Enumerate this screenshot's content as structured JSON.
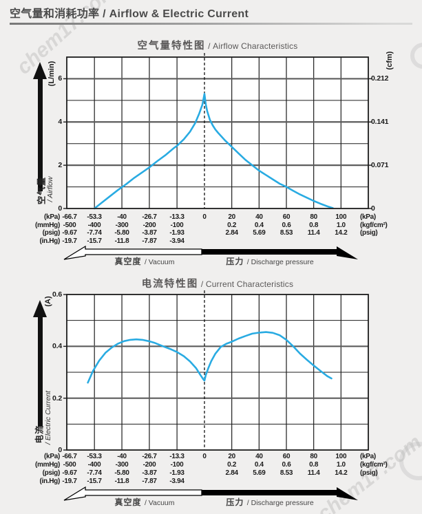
{
  "page": {
    "title": "空气量和消耗功率 / Airflow & Electric Current",
    "watermark": "chem17.com"
  },
  "pressure_axis": {
    "unit_rows": [
      {
        "left_unit": "(kPa)",
        "vacuum": [
          "-66.7",
          "-53.3",
          "-40",
          "-26.7",
          "-13.3",
          "0"
        ],
        "pressure": [
          "20",
          "40",
          "60",
          "80",
          "100"
        ],
        "right_unit": "(kPa)"
      },
      {
        "left_unit": "(mmHg)",
        "vacuum": [
          "-500",
          "-400",
          "-300",
          "-200",
          "-100",
          ""
        ],
        "pressure": [
          "0.2",
          "0.4",
          "0.6",
          "0.8",
          "1.0"
        ],
        "right_unit": "(kgf/cm²)"
      },
      {
        "left_unit": "(psig)",
        "vacuum": [
          "-9.67",
          "-7.74",
          "-5.80",
          "-3.87",
          "-1.93",
          ""
        ],
        "pressure": [
          "2.84",
          "5.69",
          "8.53",
          "11.4",
          "14.2"
        ],
        "right_unit": "(psig)"
      },
      {
        "left_unit": "(in.Hg)",
        "vacuum": [
          "-19.7",
          "-15.7",
          "-11.8",
          "-7.87",
          "-3.94",
          ""
        ],
        "pressure": [
          "",
          "",
          "",
          "",
          ""
        ],
        "right_unit": ""
      }
    ],
    "vacuum_zone_cn": "真空度",
    "vacuum_zone_en": "/ Vacuum",
    "pressure_zone_cn": "压力",
    "pressure_zone_en": "/ Discharge pressure"
  },
  "chart_data": [
    {
      "type": "line",
      "title_cn": "空气量特性图",
      "title_en": " / Airflow Characteristics",
      "ylabel_cn": "空气量",
      "ylabel_en": "/ Airflow",
      "y_unit_left": "(L/min)",
      "y_unit_right": "(cfm)",
      "ylim": [
        0,
        7
      ],
      "y_gridline_step": 1,
      "y_major_ticks": [
        2,
        4,
        6
      ],
      "y_tick_labels_left": [
        [
          "0",
          0
        ],
        [
          "2",
          2
        ],
        [
          "4",
          4
        ],
        [
          "6",
          6
        ]
      ],
      "y_tick_labels_right": [
        [
          "0",
          0
        ],
        [
          "0.071",
          2
        ],
        [
          "0.141",
          4
        ],
        [
          "0.212",
          6
        ]
      ],
      "x_range_kpa": [
        -66.7,
        120
      ],
      "x_gridlines_vacuum_kpa": [
        -53.3,
        -40,
        -26.7,
        -13.3
      ],
      "x_gridlines_pressure_kpa": [
        20,
        40,
        60,
        80,
        100
      ],
      "x_tick_labels_kpa": [
        -66.7,
        -53.3,
        -40,
        -26.7,
        -13.3,
        0,
        20,
        40,
        60,
        80,
        100
      ],
      "zero_line_kpa": 0,
      "line_color": "#29abe2",
      "grid_on": true,
      "series": [
        {
          "name": "airflow",
          "x_kpa": [
            -53.3,
            -50,
            -46,
            -42,
            -38,
            -34,
            -30,
            -26.7,
            -23,
            -19,
            -15,
            -13.3,
            -10,
            -7,
            -4.5,
            -2.5,
            -1,
            0,
            1,
            2,
            4,
            6,
            8,
            10,
            15,
            20,
            25,
            30,
            35,
            40,
            45,
            50,
            55,
            60,
            65,
            70,
            75,
            80,
            85,
            90,
            94
          ],
          "y": [
            0,
            0.25,
            0.55,
            0.85,
            1.12,
            1.42,
            1.68,
            1.9,
            2.18,
            2.46,
            2.78,
            2.9,
            3.2,
            3.55,
            3.95,
            4.4,
            4.8,
            5.3,
            4.8,
            4.5,
            4.1,
            3.85,
            3.65,
            3.5,
            3.15,
            2.85,
            2.55,
            2.25,
            2.0,
            1.75,
            1.55,
            1.35,
            1.15,
            1.0,
            0.82,
            0.65,
            0.5,
            0.35,
            0.22,
            0.1,
            0.02
          ]
        }
      ]
    },
    {
      "type": "line",
      "title_cn": "电流特性图",
      "title_en": " / Current Characteristics",
      "ylabel_cn": "电流",
      "ylabel_en": "/ Electric Current",
      "y_unit_left": "(A)",
      "y_unit_right": "",
      "ylim": [
        0,
        0.6
      ],
      "y_gridline_step": 0.1,
      "y_major_ticks": [
        0.2,
        0.4
      ],
      "y_tick_labels_left": [
        [
          "0",
          0
        ],
        [
          "0.2",
          0.2
        ],
        [
          "0.4",
          0.4
        ],
        [
          "0.6",
          0.6
        ]
      ],
      "y_tick_labels_right": null,
      "x_range_kpa": [
        -66.7,
        120
      ],
      "x_gridlines_vacuum_kpa": [
        -53.3,
        -40,
        -26.7,
        -13.3
      ],
      "x_gridlines_pressure_kpa": [
        20,
        40,
        60,
        80,
        100
      ],
      "x_tick_labels_kpa": [
        -66.7,
        -53.3,
        -40,
        -26.7,
        -13.3,
        0,
        20,
        40,
        60,
        80,
        100
      ],
      "zero_line_kpa": 0,
      "line_color": "#29abe2",
      "grid_on": true,
      "series": [
        {
          "name": "electric-current",
          "x_kpa": [
            -56.5,
            -54,
            -51,
            -48,
            -45,
            -42,
            -39,
            -36,
            -33,
            -30,
            -27,
            -24,
            -20,
            -16,
            -13.3,
            -10,
            -7,
            -4,
            -2,
            -0.5,
            0,
            1,
            3,
            5,
            8,
            12,
            16,
            20,
            25,
            30,
            35,
            40,
            45,
            50,
            55,
            60,
            65,
            70,
            75,
            80,
            85,
            90,
            93
          ],
          "y": [
            0.26,
            0.305,
            0.345,
            0.375,
            0.395,
            0.41,
            0.42,
            0.425,
            0.427,
            0.425,
            0.42,
            0.413,
            0.4,
            0.388,
            0.378,
            0.362,
            0.342,
            0.315,
            0.29,
            0.272,
            0.268,
            0.29,
            0.318,
            0.343,
            0.372,
            0.398,
            0.41,
            0.418,
            0.43,
            0.44,
            0.449,
            0.453,
            0.455,
            0.452,
            0.443,
            0.425,
            0.4,
            0.372,
            0.348,
            0.326,
            0.305,
            0.285,
            0.276
          ]
        }
      ]
    }
  ]
}
